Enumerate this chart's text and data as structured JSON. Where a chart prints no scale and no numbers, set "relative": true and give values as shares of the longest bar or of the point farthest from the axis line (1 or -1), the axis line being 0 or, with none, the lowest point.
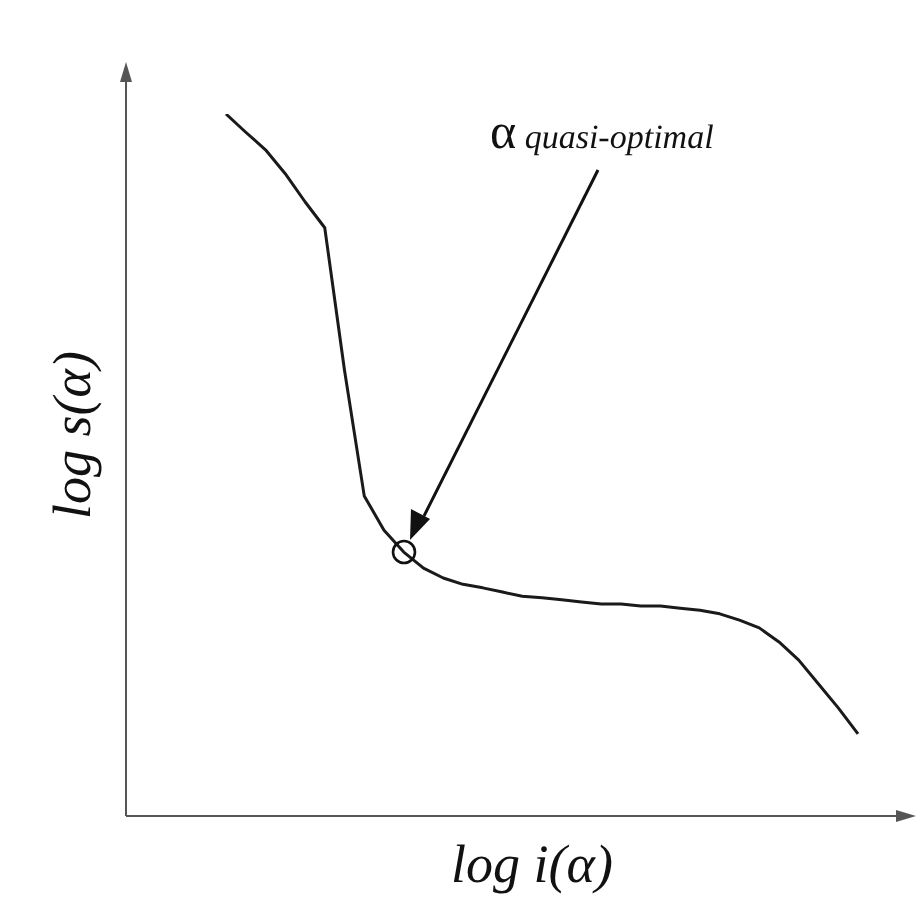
{
  "chart_data": {
    "type": "line",
    "relative": true,
    "xlabel": "log i(α)",
    "ylabel": "log s(α)",
    "legend": false,
    "marker": "none",
    "line_style": "solid",
    "categories": [
      null,
      null,
      null,
      null,
      null,
      null,
      null,
      null,
      null,
      null,
      null,
      null,
      null,
      null,
      null,
      null,
      null,
      null,
      null,
      null,
      null,
      null,
      null,
      null,
      null,
      null,
      null,
      null,
      null,
      null,
      null,
      null,
      null
    ],
    "series": [
      {
        "color": "#1a1a1a",
        "values": [
          1.0,
          0.974,
          0.949,
          0.915,
          0.875,
          0.838,
          0.635,
          0.456,
          0.407,
          0.376,
          0.353,
          0.339,
          0.33,
          0.325,
          0.319,
          0.313,
          0.311,
          0.308,
          0.305,
          0.302,
          0.302,
          0.299,
          0.299,
          0.296,
          0.293,
          0.288,
          0.279,
          0.268,
          0.248,
          0.222,
          0.188,
          0.154,
          0.117
        ]
      }
    ],
    "annotations": [
      "α quasi-optimal"
    ]
  }
}
